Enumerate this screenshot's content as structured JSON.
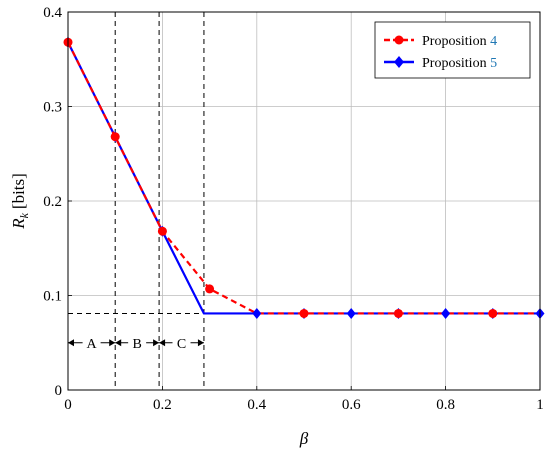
{
  "chart_data": {
    "type": "line",
    "title": "",
    "xlabel": "β",
    "ylabel": {
      "symbol": "R",
      "subscript": "k",
      "unit": "[bits]"
    },
    "xlim": [
      0,
      1
    ],
    "ylim": [
      0,
      0.4
    ],
    "xticks": [
      "0",
      "0.2",
      "0.4",
      "0.6",
      "0.8",
      "1"
    ],
    "yticks": [
      "0",
      "0.1",
      "0.2",
      "0.3",
      "0.4"
    ],
    "grid": true,
    "legend_position": "top-right",
    "series": [
      {
        "name": "Proposition",
        "ref": "4",
        "color": "#ff0000",
        "style": "dashed",
        "marker": "circle",
        "x": [
          0,
          0.1,
          0.2,
          0.3,
          0.4,
          0.5,
          0.6,
          0.7,
          0.8,
          0.9,
          1.0
        ],
        "y": [
          0.368,
          0.268,
          0.168,
          0.107,
          0.081,
          0.081,
          0.081,
          0.081,
          0.081,
          0.081,
          0.081
        ],
        "marker_x": [
          0,
          0.1,
          0.2,
          0.3,
          0.5,
          0.7,
          0.9
        ]
      },
      {
        "name": "Proposition",
        "ref": "5",
        "color": "#0000ff",
        "style": "solid",
        "marker": "diamond",
        "x": [
          0,
          0.1,
          0.2,
          0.288,
          0.4,
          0.5,
          0.6,
          0.7,
          0.8,
          0.9,
          1.0
        ],
        "y": [
          0.368,
          0.268,
          0.168,
          0.081,
          0.081,
          0.081,
          0.081,
          0.081,
          0.081,
          0.081,
          0.081
        ],
        "marker_x": [
          0,
          0.1,
          0.2,
          0.4,
          0.5,
          0.6,
          0.7,
          0.8,
          0.9,
          1.0
        ]
      }
    ],
    "reference_lines": {
      "vertical_x": [
        0.1,
        0.193,
        0.288
      ],
      "horizontal_y": 0.081,
      "horizontal_x_range": [
        0,
        0.288
      ]
    },
    "regions": [
      {
        "label": "A",
        "x0": 0,
        "x1": 0.1
      },
      {
        "label": "B",
        "x0": 0.1,
        "x1": 0.193
      },
      {
        "label": "C",
        "x0": 0.193,
        "x1": 0.288
      }
    ],
    "region_arrow_y": 0.05
  }
}
